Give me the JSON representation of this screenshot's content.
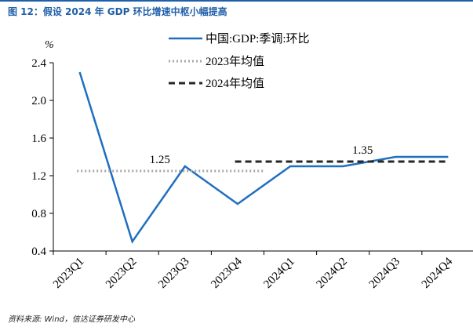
{
  "figure": {
    "title": "图 12：假设 2024 年 GDP 环比增速中枢小幅提高",
    "source": "资料来源: Wind，信达证券研发中心"
  },
  "colors": {
    "accent": "#1f5fa8",
    "series_line": "#1f6fbf",
    "avg_2023": "#a6a6a6",
    "avg_2024": "#262626",
    "axis": "#000000"
  },
  "chart_data": {
    "type": "line",
    "unit_label": "%",
    "categories": [
      "2023Q1",
      "2023Q2",
      "2023Q3",
      "2023Q4",
      "2024Q1",
      "2024Q2",
      "2024Q3",
      "2024Q4"
    ],
    "ylim": [
      0.4,
      2.4
    ],
    "yticks": [
      "0.4",
      "0.8",
      "1.2",
      "1.6",
      "2.0",
      "2.4"
    ],
    "grid": false,
    "legend_position": "top",
    "series": [
      {
        "name": "中国:GDP:季调:环比",
        "style": "solid",
        "values": [
          2.3,
          0.5,
          1.3,
          0.9,
          1.3,
          1.3,
          1.4,
          1.4
        ]
      },
      {
        "name": "2023年均值",
        "style": "dotted",
        "values": [
          1.25,
          1.25,
          1.25,
          1.25,
          null,
          null,
          null,
          null
        ]
      },
      {
        "name": "2024年均值",
        "style": "dashed",
        "values": [
          null,
          null,
          null,
          1.35,
          1.35,
          1.35,
          1.35,
          1.35
        ]
      }
    ],
    "annotations": [
      {
        "text": "1.25",
        "x": "2023Q2",
        "y": 1.25
      },
      {
        "text": "1.35",
        "x": "2024Q2",
        "y": 1.35
      }
    ]
  }
}
